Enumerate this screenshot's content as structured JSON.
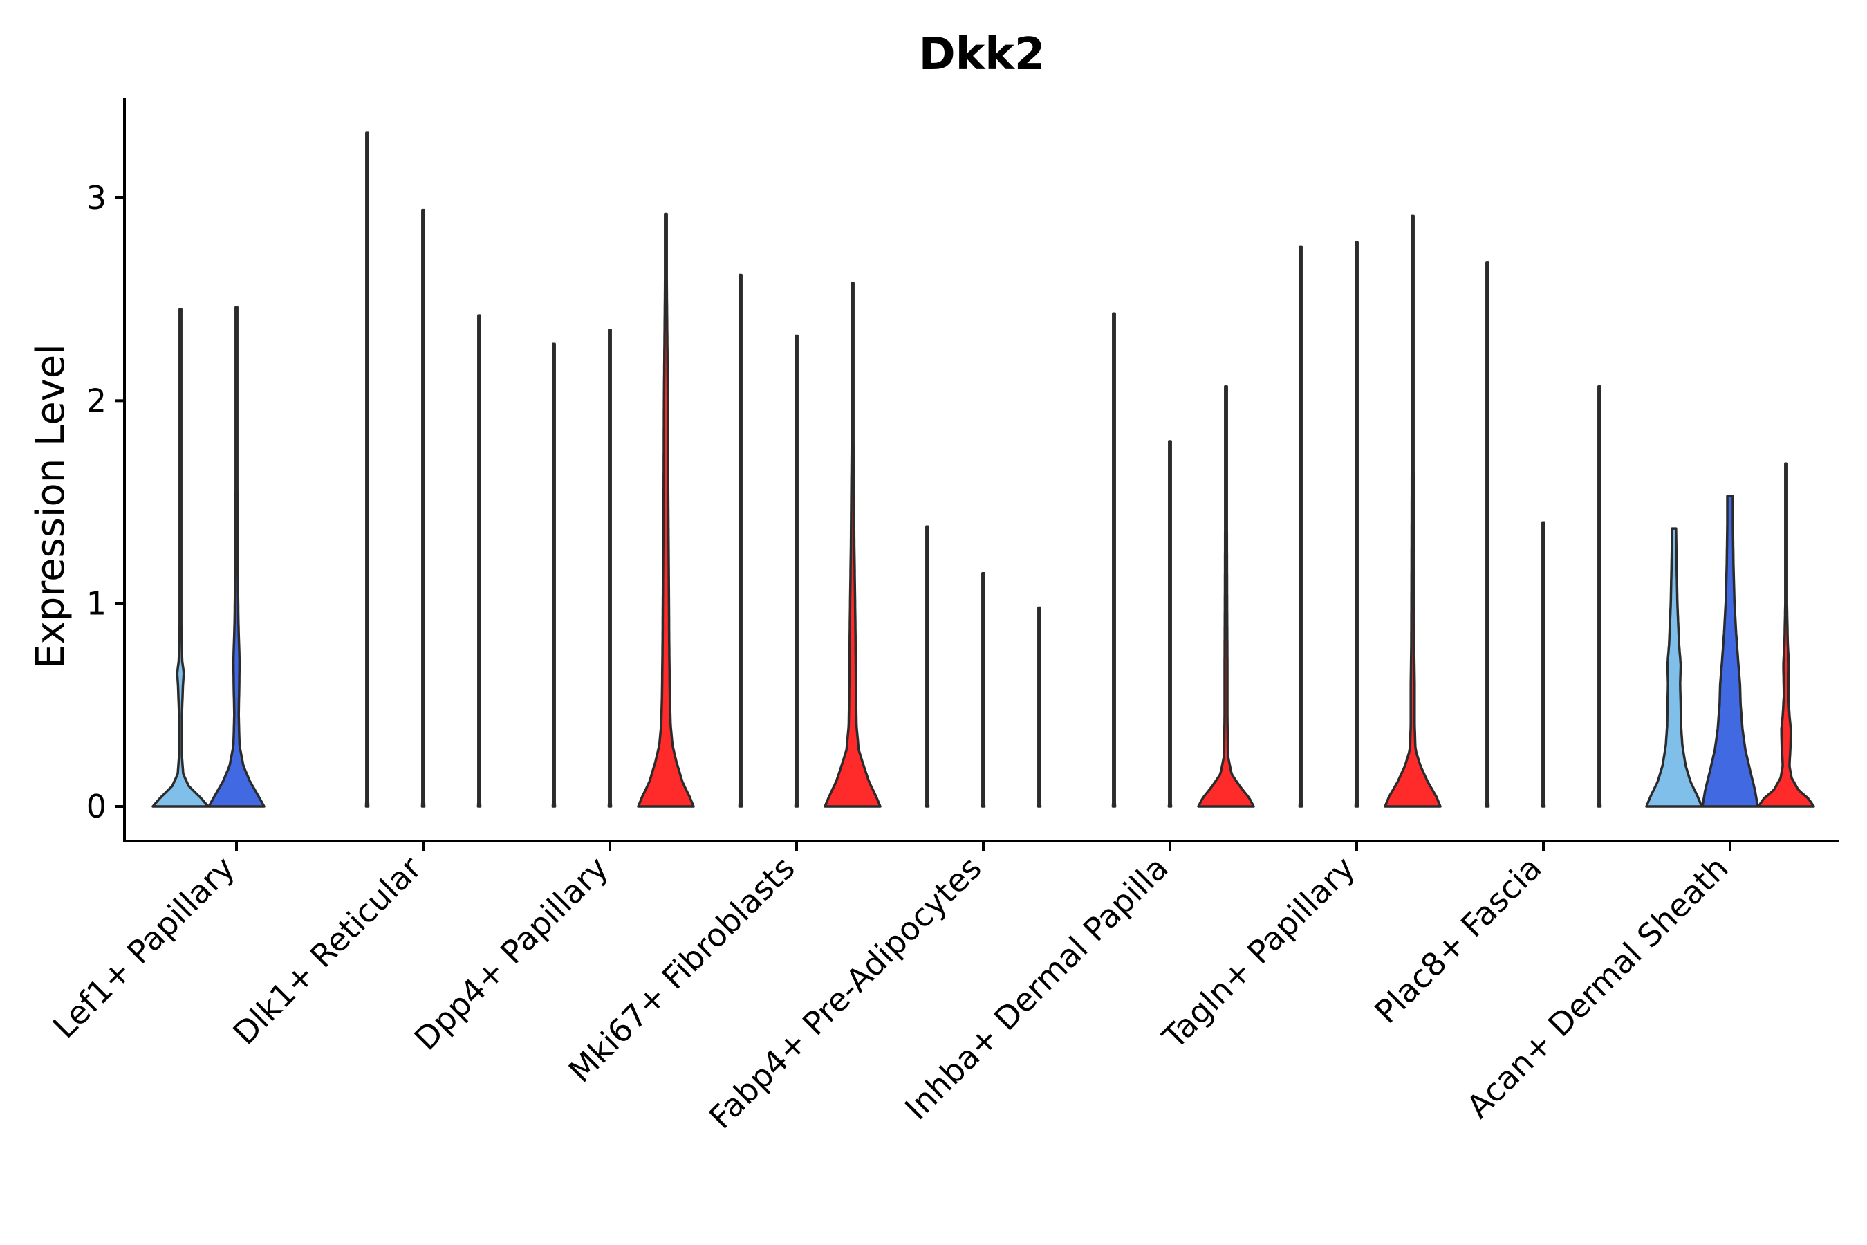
{
  "chart_data": {
    "type": "violin",
    "title": "Dkk2",
    "xlabel": "",
    "ylabel": "Expression Level",
    "ylim": [
      -0.17,
      3.5
    ],
    "yticks": [
      0,
      1,
      2,
      3
    ],
    "grid": false,
    "legend": "none",
    "group_colors": [
      "#7fbfea",
      "#4169e1",
      "#ff2a2a"
    ],
    "categories": [
      "Lef1+ Papillary",
      "Dlk1+ Reticular",
      "Dpp4+ Papillary",
      "Mki67+ Fibroblasts",
      "Fabp4+ Pre-Adipocytes",
      "Inhba+ Dermal Papilla",
      "Tagln+ Papillary",
      "Plac8+ Fascia",
      "Acan+ Dermal Sheath"
    ],
    "violins": [
      [
        {
          "group": 0,
          "max": 2.45,
          "profile": [
            [
              0,
              1.0
            ],
            [
              0.04,
              0.75
            ],
            [
              0.1,
              0.3
            ],
            [
              0.16,
              0.1
            ],
            [
              0.25,
              0.05
            ],
            [
              0.45,
              0.05
            ],
            [
              0.6,
              0.09
            ],
            [
              0.66,
              0.12
            ],
            [
              0.72,
              0.06
            ],
            [
              0.9,
              0.03
            ],
            [
              1.5,
              0.02
            ],
            [
              2.45,
              0.01
            ]
          ]
        },
        {
          "group": 1,
          "max": 2.46,
          "profile": [
            [
              0,
              1.0
            ],
            [
              0.05,
              0.8
            ],
            [
              0.12,
              0.5
            ],
            [
              0.2,
              0.25
            ],
            [
              0.3,
              0.11
            ],
            [
              0.45,
              0.08
            ],
            [
              0.6,
              0.1
            ],
            [
              0.72,
              0.11
            ],
            [
              0.9,
              0.07
            ],
            [
              1.2,
              0.04
            ],
            [
              1.6,
              0.03
            ],
            [
              2.46,
              0.01
            ]
          ]
        },
        null
      ],
      [
        {
          "group": 0,
          "max": 3.32,
          "profile": [
            [
              0,
              0.04
            ],
            [
              0.01,
              0.01
            ],
            [
              3.32,
              0.01
            ]
          ]
        },
        {
          "group": 1,
          "max": 2.94,
          "profile": [
            [
              0,
              0.04
            ],
            [
              0.01,
              0.01
            ],
            [
              2.94,
              0.01
            ]
          ]
        },
        {
          "group": 2,
          "max": 2.42,
          "profile": [
            [
              0,
              0.04
            ],
            [
              0.01,
              0.01
            ],
            [
              2.42,
              0.01
            ]
          ]
        }
      ],
      [
        {
          "group": 0,
          "max": 2.28,
          "profile": [
            [
              0,
              0.04
            ],
            [
              0.01,
              0.01
            ],
            [
              2.28,
              0.01
            ]
          ]
        },
        {
          "group": 1,
          "max": 2.35,
          "profile": [
            [
              0,
              0.04
            ],
            [
              0.01,
              0.01
            ],
            [
              2.35,
              0.01
            ]
          ]
        },
        {
          "group": 2,
          "max": 2.92,
          "profile": [
            [
              0,
              1.0
            ],
            [
              0.05,
              0.85
            ],
            [
              0.12,
              0.6
            ],
            [
              0.22,
              0.38
            ],
            [
              0.3,
              0.24
            ],
            [
              0.4,
              0.17
            ],
            [
              0.55,
              0.14
            ],
            [
              0.8,
              0.12
            ],
            [
              1.2,
              0.1
            ],
            [
              1.6,
              0.08
            ],
            [
              2.0,
              0.07
            ],
            [
              2.3,
              0.05
            ],
            [
              2.6,
              0.03
            ],
            [
              2.92,
              0.01
            ]
          ]
        }
      ],
      [
        {
          "group": 0,
          "max": 2.62,
          "profile": [
            [
              0,
              0.04
            ],
            [
              0.01,
              0.01
            ],
            [
              2.62,
              0.01
            ]
          ]
        },
        {
          "group": 1,
          "max": 2.32,
          "profile": [
            [
              0,
              0.04
            ],
            [
              0.01,
              0.01
            ],
            [
              2.32,
              0.01
            ]
          ]
        },
        {
          "group": 2,
          "max": 2.58,
          "profile": [
            [
              0,
              1.0
            ],
            [
              0.05,
              0.85
            ],
            [
              0.12,
              0.6
            ],
            [
              0.2,
              0.4
            ],
            [
              0.28,
              0.22
            ],
            [
              0.4,
              0.14
            ],
            [
              0.6,
              0.12
            ],
            [
              0.9,
              0.1
            ],
            [
              1.3,
              0.06
            ],
            [
              1.8,
              0.03
            ],
            [
              2.58,
              0.01
            ]
          ]
        }
      ],
      [
        {
          "group": 0,
          "max": 1.38,
          "profile": [
            [
              0,
              0.04
            ],
            [
              0.01,
              0.01
            ],
            [
              1.38,
              0.01
            ]
          ]
        },
        {
          "group": 1,
          "max": 1.15,
          "profile": [
            [
              0,
              0.04
            ],
            [
              0.01,
              0.01
            ],
            [
              1.15,
              0.01
            ]
          ]
        },
        {
          "group": 2,
          "max": 0.98,
          "profile": [
            [
              0,
              0.04
            ],
            [
              0.01,
              0.01
            ],
            [
              0.98,
              0.01
            ]
          ]
        }
      ],
      [
        {
          "group": 0,
          "max": 2.43,
          "profile": [
            [
              0,
              0.04
            ],
            [
              0.01,
              0.01
            ],
            [
              2.43,
              0.01
            ]
          ]
        },
        {
          "group": 1,
          "max": 1.8,
          "profile": [
            [
              0,
              0.04
            ],
            [
              0.01,
              0.01
            ],
            [
              1.8,
              0.01
            ]
          ]
        },
        {
          "group": 2,
          "max": 2.07,
          "profile": [
            [
              0,
              1.0
            ],
            [
              0.04,
              0.85
            ],
            [
              0.1,
              0.5
            ],
            [
              0.16,
              0.2
            ],
            [
              0.25,
              0.07
            ],
            [
              0.45,
              0.05
            ],
            [
              0.7,
              0.05
            ],
            [
              1.0,
              0.04
            ],
            [
              1.4,
              0.03
            ],
            [
              2.07,
              0.01
            ]
          ]
        }
      ],
      [
        {
          "group": 0,
          "max": 2.76,
          "profile": [
            [
              0,
              0.04
            ],
            [
              0.01,
              0.01
            ],
            [
              2.76,
              0.01
            ]
          ]
        },
        {
          "group": 1,
          "max": 2.78,
          "profile": [
            [
              0,
              0.04
            ],
            [
              0.01,
              0.01
            ],
            [
              2.78,
              0.01
            ]
          ]
        },
        {
          "group": 2,
          "max": 2.91,
          "profile": [
            [
              0,
              1.0
            ],
            [
              0.05,
              0.85
            ],
            [
              0.12,
              0.55
            ],
            [
              0.2,
              0.28
            ],
            [
              0.28,
              0.1
            ],
            [
              0.4,
              0.07
            ],
            [
              0.6,
              0.07
            ],
            [
              0.8,
              0.05
            ],
            [
              1.2,
              0.04
            ],
            [
              1.7,
              0.03
            ],
            [
              2.91,
              0.01
            ]
          ]
        }
      ],
      [
        {
          "group": 0,
          "max": 2.68,
          "profile": [
            [
              0,
              0.04
            ],
            [
              0.01,
              0.01
            ],
            [
              2.68,
              0.01
            ]
          ]
        },
        {
          "group": 1,
          "max": 1.4,
          "profile": [
            [
              0,
              0.04
            ],
            [
              0.01,
              0.01
            ],
            [
              1.4,
              0.01
            ]
          ]
        },
        {
          "group": 2,
          "max": 2.07,
          "profile": [
            [
              0,
              0.04
            ],
            [
              0.01,
              0.01
            ],
            [
              2.07,
              0.01
            ]
          ]
        }
      ],
      [
        {
          "group": 0,
          "max": 1.37,
          "profile": [
            [
              0,
              1.0
            ],
            [
              0.05,
              0.85
            ],
            [
              0.12,
              0.6
            ],
            [
              0.2,
              0.42
            ],
            [
              0.3,
              0.3
            ],
            [
              0.4,
              0.25
            ],
            [
              0.5,
              0.24
            ],
            [
              0.6,
              0.22
            ],
            [
              0.7,
              0.24
            ],
            [
              0.8,
              0.18
            ],
            [
              1.0,
              0.12
            ],
            [
              1.2,
              0.09
            ],
            [
              1.37,
              0.07
            ]
          ]
        },
        {
          "group": 1,
          "max": 1.53,
          "profile": [
            [
              0,
              1.0
            ],
            [
              0.08,
              0.9
            ],
            [
              0.18,
              0.72
            ],
            [
              0.28,
              0.55
            ],
            [
              0.38,
              0.45
            ],
            [
              0.5,
              0.38
            ],
            [
              0.6,
              0.36
            ],
            [
              0.7,
              0.3
            ],
            [
              0.85,
              0.22
            ],
            [
              1.0,
              0.16
            ],
            [
              1.2,
              0.12
            ],
            [
              1.4,
              0.1
            ],
            [
              1.53,
              0.1
            ]
          ]
        },
        {
          "group": 2,
          "max": 1.69,
          "profile": [
            [
              0,
              1.0
            ],
            [
              0.04,
              0.8
            ],
            [
              0.08,
              0.45
            ],
            [
              0.14,
              0.2
            ],
            [
              0.2,
              0.12
            ],
            [
              0.3,
              0.16
            ],
            [
              0.38,
              0.17
            ],
            [
              0.45,
              0.12
            ],
            [
              0.55,
              0.08
            ],
            [
              0.7,
              0.1
            ],
            [
              0.8,
              0.06
            ],
            [
              1.0,
              0.03
            ],
            [
              1.69,
              0.01
            ]
          ]
        }
      ]
    ]
  }
}
